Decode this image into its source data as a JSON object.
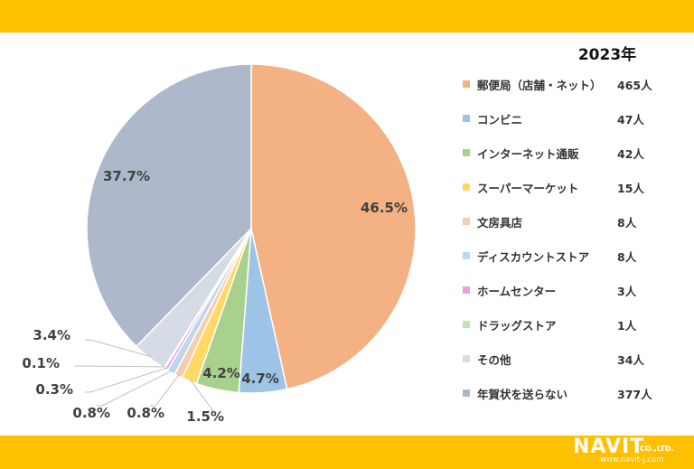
{
  "chart_data": {
    "type": "pie",
    "title": "2023年",
    "slices": [
      {
        "label": "郵便局（店舗・ネット）",
        "value_text": "465人",
        "value": 465,
        "percent": 46.5,
        "percent_label": "46.5%",
        "color": "#F4B183"
      },
      {
        "label": "コンビニ",
        "value_text": "47人",
        "value": 47,
        "percent": 4.7,
        "percent_label": "4.7%",
        "color": "#9DC3E6"
      },
      {
        "label": "インターネット通販",
        "value_text": "42人",
        "value": 42,
        "percent": 4.2,
        "percent_label": "4.2%",
        "color": "#A9D18E"
      },
      {
        "label": "スーパーマーケット",
        "value_text": "15人",
        "value": 15,
        "percent": 1.5,
        "percent_label": "1.5%",
        "color": "#FFD966"
      },
      {
        "label": "文房具店",
        "value_text": "8人",
        "value": 8,
        "percent": 0.8,
        "percent_label": "0.8%",
        "color": "#F8CBAD"
      },
      {
        "label": "ディスカウントストア",
        "value_text": "8人",
        "value": 8,
        "percent": 0.8,
        "percent_label": "0.8%",
        "color": "#BDD7EE"
      },
      {
        "label": "ホームセンター",
        "value_text": "3人",
        "value": 3,
        "percent": 0.3,
        "percent_label": "0.3%",
        "color": "#F09CE6"
      },
      {
        "label": "ドラッグストア",
        "value_text": "1人",
        "value": 1,
        "percent": 0.1,
        "percent_label": "0.1%",
        "color": "#C5E0B4"
      },
      {
        "label": "その他",
        "value_text": "34人",
        "value": 34,
        "percent": 3.4,
        "percent_label": "3.4%",
        "color": "#D6DCE5"
      },
      {
        "label": "年賀状を送らない",
        "value_text": "377人",
        "value": 377,
        "percent": 37.7,
        "percent_label": "37.7%",
        "color": "#ADB9CA"
      }
    ],
    "legend_position": "right"
  },
  "brand": {
    "accent_color": "#FFC000",
    "logo_name": "NAVIT",
    "logo_suffix": "CO.,LTD.",
    "logo_url": "www.navit-j.com"
  }
}
